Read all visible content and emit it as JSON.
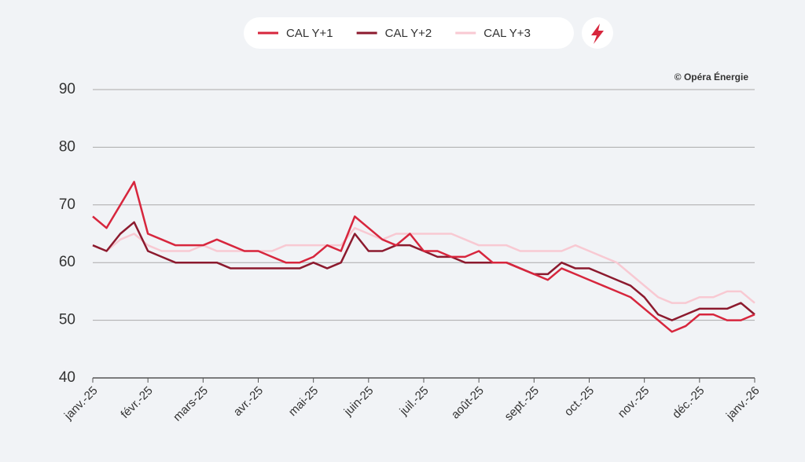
{
  "chart_data": {
    "type": "line",
    "credit": "© Opéra Énergie",
    "categories": [
      "janv.-25",
      null,
      null,
      null,
      "févr.-25",
      null,
      null,
      null,
      "mars-25",
      null,
      null,
      null,
      "avr.-25",
      null,
      null,
      null,
      "mai-25",
      null,
      null,
      null,
      "juin-25",
      null,
      null,
      null,
      "juil.-25",
      null,
      null,
      null,
      "août-25",
      null,
      null,
      null,
      "sept.-25",
      null,
      null,
      null,
      "oct.-25",
      null,
      null,
      null,
      "nov.-25",
      null,
      null,
      null,
      "déc.-25",
      null,
      null,
      null,
      "janv.-26"
    ],
    "series": [
      {
        "name": "CAL Y+1",
        "color": "#d7263d",
        "values": [
          68,
          66,
          70,
          74,
          65,
          64,
          63,
          63,
          63,
          64,
          63,
          62,
          62,
          61,
          60,
          60,
          61,
          63,
          62,
          68,
          66,
          64,
          63,
          65,
          62,
          62,
          61,
          61,
          62,
          60,
          60,
          59,
          58,
          57,
          59,
          58,
          57,
          56,
          55,
          54,
          52,
          50,
          48,
          49,
          51,
          51,
          50,
          50,
          51
        ]
      },
      {
        "name": "CAL Y+2",
        "color": "#8c1a2e",
        "values": [
          63,
          62,
          65,
          67,
          62,
          61,
          60,
          60,
          60,
          60,
          59,
          59,
          59,
          59,
          59,
          59,
          60,
          59,
          60,
          65,
          62,
          62,
          63,
          63,
          62,
          61,
          61,
          60,
          60,
          60,
          60,
          59,
          58,
          58,
          60,
          59,
          59,
          58,
          57,
          56,
          54,
          51,
          50,
          51,
          52,
          52,
          52,
          53,
          51
        ]
      },
      {
        "name": "CAL Y+3",
        "color": "#f8c9d2",
        "values": [
          63,
          62,
          64,
          65,
          63,
          62,
          62,
          62,
          63,
          62,
          62,
          62,
          62,
          62,
          63,
          63,
          63,
          63,
          63,
          66,
          65,
          64,
          65,
          65,
          65,
          65,
          65,
          64,
          63,
          63,
          63,
          62,
          62,
          62,
          62,
          63,
          62,
          61,
          60,
          58,
          56,
          54,
          53,
          53,
          54,
          54,
          55,
          55,
          53
        ]
      }
    ],
    "ylim": [
      40,
      90
    ],
    "yticks": [
      40,
      50,
      60,
      70,
      80,
      90
    ],
    "grid": true
  }
}
